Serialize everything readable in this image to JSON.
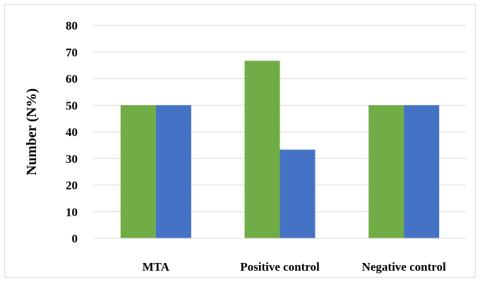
{
  "chart_data": {
    "type": "bar",
    "title": "",
    "xlabel": "",
    "ylabel": "Number (N%)",
    "categories": [
      "MTA",
      "Positive control",
      "Negative control"
    ],
    "ylim": [
      0,
      80
    ],
    "yticks": [
      0,
      10,
      20,
      30,
      40,
      50,
      60,
      70,
      80
    ],
    "grid": true,
    "legend": "none",
    "series": [
      {
        "values": [
          50,
          66.7,
          50
        ],
        "color": "#70ad47"
      },
      {
        "values": [
          50,
          33.3,
          50
        ],
        "color": "#4472c4"
      }
    ]
  }
}
